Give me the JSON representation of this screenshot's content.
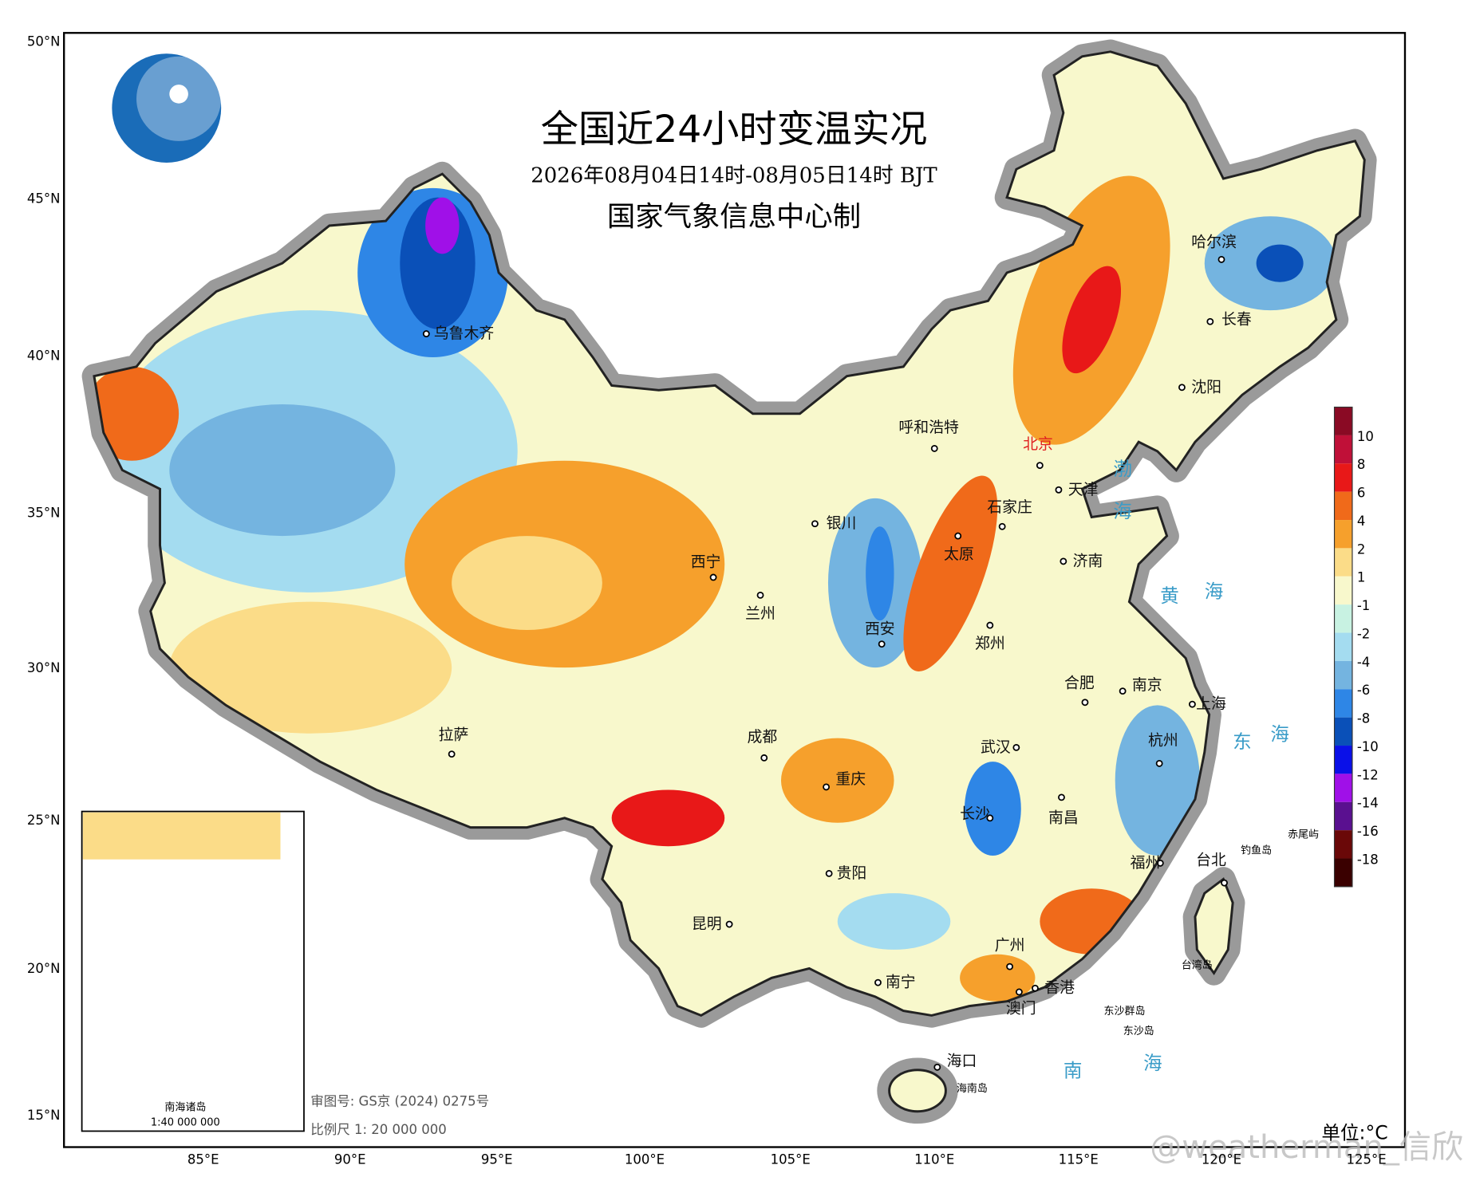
{
  "header": {
    "title": "全国近24小时变温实况",
    "subtitle": "2026年08月04日14时-08月05日14时 BJT",
    "producer": "国家气象信息中心制"
  },
  "lat_ticks": [
    "50°N",
    "45°N",
    "40°N",
    "35°N",
    "30°N",
    "25°N",
    "20°N",
    "15°N"
  ],
  "lon_ticks": [
    "85°E",
    "90°E",
    "95°E",
    "100°E",
    "105°E",
    "110°E",
    "115°E",
    "120°E",
    "125°E"
  ],
  "cities": [
    "乌鲁木齐",
    "呼和浩特",
    "北京",
    "天津",
    "石家庄",
    "太原",
    "济南",
    "银川",
    "西宁",
    "兰州",
    "西安",
    "郑州",
    "合肥",
    "南京",
    "上海",
    "武汉",
    "杭州",
    "成都",
    "重庆",
    "拉萨",
    "长沙",
    "南昌",
    "福州",
    "台北",
    "贵阳",
    "昆明",
    "南宁",
    "广州",
    "香港",
    "澳门",
    "海口",
    "哈尔滨",
    "长春",
    "沈阳"
  ],
  "seas": [
    "渤",
    "海",
    "黄",
    "海",
    "东",
    "海",
    "南",
    "海"
  ],
  "islands": [
    "钓鱼岛",
    "赤尾屿",
    "台湾岛",
    "东沙群岛",
    "东沙岛",
    "海南岛"
  ],
  "legend": {
    "labels": [
      10,
      8,
      6,
      4,
      2,
      1,
      -1,
      -2,
      -4,
      -6,
      -8,
      -10,
      -12,
      -14,
      -16,
      -18
    ],
    "colors": [
      "#8a0a24",
      "#c01038",
      "#e81818",
      "#f06a1a",
      "#f6a02c",
      "#fbdc88",
      "#f8f8cc",
      "#c8f2e2",
      "#a4dcf0",
      "#74b4e0",
      "#2e86e6",
      "#0a50b8",
      "#0a10e8",
      "#a010e8",
      "#5a1090",
      "#6a0808",
      "#3a0000"
    ],
    "unit": "单位:°C"
  },
  "inset": {
    "title": "南海诸岛",
    "scale": "1:40 000 000"
  },
  "footer": {
    "approval": "审图号: GS京 (2024) 0275号",
    "scale": "比例尺 1: 20 000 000"
  },
  "watermark": "@weatherman_信欣"
}
